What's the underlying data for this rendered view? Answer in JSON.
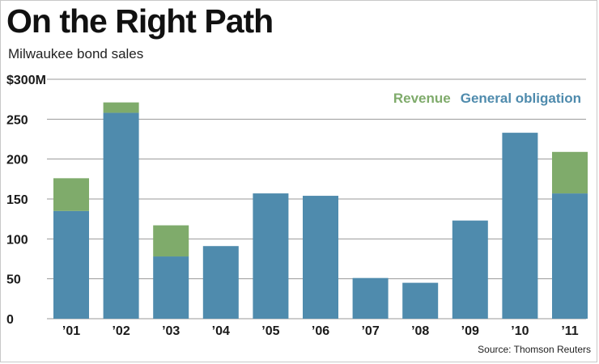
{
  "title": "On the Right Path",
  "subtitle": "Milwaukee bond sales",
  "source": "Source: Thomson Reuters",
  "chart_data": {
    "type": "bar",
    "stacked": true,
    "categories": [
      "’01",
      "’02",
      "’03",
      "’04",
      "’05",
      "’06",
      "’07",
      "’08",
      "’09",
      "’10",
      "’11"
    ],
    "series": [
      {
        "name": "General obligation",
        "color": "#4f8bad",
        "values": [
          135,
          258,
          78,
          91,
          157,
          154,
          51,
          45,
          123,
          233,
          157
        ]
      },
      {
        "name": "Revenue",
        "color": "#7fab6b",
        "values": [
          41,
          13,
          39,
          0,
          0,
          0,
          0,
          0,
          0,
          0,
          52
        ]
      }
    ],
    "yticks": [
      {
        "value": 0,
        "label": "0"
      },
      {
        "value": 50,
        "label": "50"
      },
      {
        "value": 100,
        "label": "100"
      },
      {
        "value": 150,
        "label": "150"
      },
      {
        "value": 200,
        "label": "200"
      },
      {
        "value": 250,
        "label": "250"
      },
      {
        "value": 300,
        "label": "$300M"
      }
    ],
    "ylim": [
      0,
      300
    ],
    "grid": true,
    "legend_position": "top-right",
    "legend_order": [
      "Revenue",
      "General obligation"
    ],
    "gridline_color": "#9a9a9a"
  }
}
